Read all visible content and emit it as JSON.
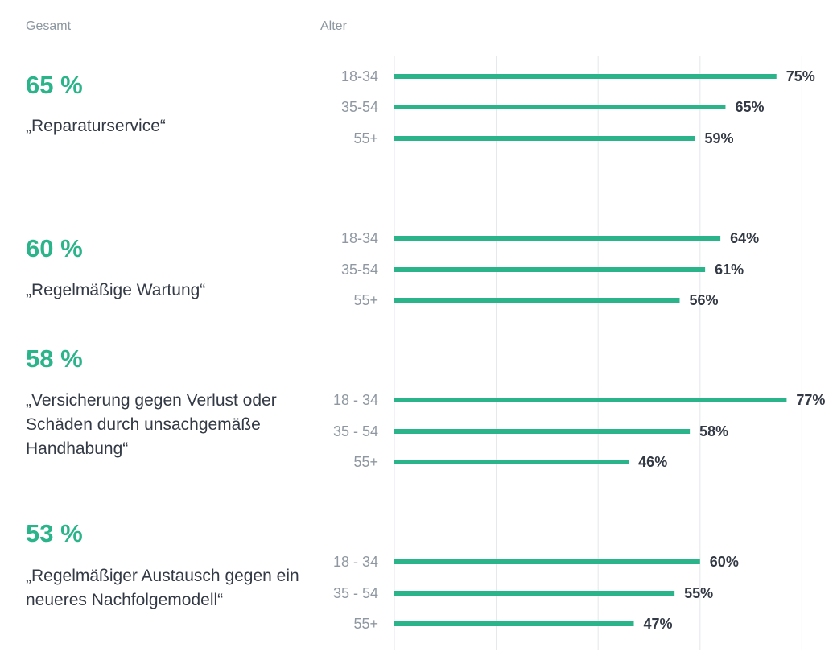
{
  "headers": {
    "total": "Gesamt",
    "age": "Alter"
  },
  "colors": {
    "bar": "#2bb489",
    "grid": "#e3e6ea",
    "accent": "#2bb489"
  },
  "chart_data": {
    "type": "bar",
    "orientation": "horizontal",
    "xlim": [
      0,
      80
    ],
    "grid": true,
    "groups": [
      {
        "total": "65 %",
        "label": "„Reparaturservice“",
        "bars": [
          {
            "category": "18-34",
            "value": 75,
            "value_label": "75%"
          },
          {
            "category": "35-54",
            "value": 65,
            "value_label": "65%"
          },
          {
            "category": "55+",
            "value": 59,
            "value_label": "59%"
          }
        ]
      },
      {
        "total": "60 %",
        "label": "„Regelmäßige Wartung“",
        "bars": [
          {
            "category": "18-34",
            "value": 64,
            "value_label": "64%"
          },
          {
            "category": "35-54",
            "value": 61,
            "value_label": "61%"
          },
          {
            "category": "55+",
            "value": 56,
            "value_label": "56%"
          }
        ]
      },
      {
        "total": "58 %",
        "label": "„Versicherung gegen Verlust oder Schäden durch unsachgemäße Handhabung“",
        "bars": [
          {
            "category": "18 - 34",
            "value": 77,
            "value_label": "77%"
          },
          {
            "category": "35 - 54",
            "value": 58,
            "value_label": "58%"
          },
          {
            "category": "55+",
            "value": 46,
            "value_label": "46%"
          }
        ]
      },
      {
        "total": "53 %",
        "label": "„Regelmäßiger Austausch gegen ein neueres Nachfolgemodell“",
        "bars": [
          {
            "category": "18 - 34",
            "value": 60,
            "value_label": "60%"
          },
          {
            "category": "35 - 54",
            "value": 55,
            "value_label": "55%"
          },
          {
            "category": "55+",
            "value": 47,
            "value_label": "47%"
          }
        ]
      }
    ]
  }
}
